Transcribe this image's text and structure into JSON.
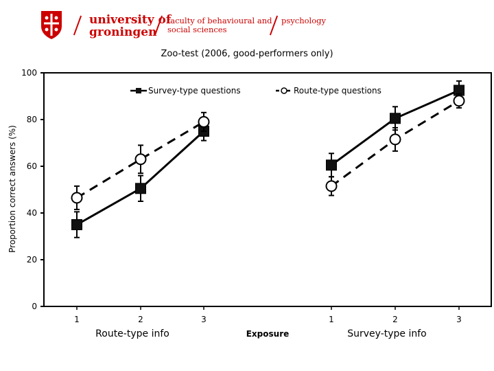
{
  "header": {
    "logo_line1": "university of",
    "logo_line2": "groningen",
    "faculty_line1": "faculty of behavioural and",
    "faculty_line2": "social sciences",
    "department": "psychology",
    "brand_color": "#cc0000"
  },
  "chart_data": {
    "type": "line",
    "title": "Zoo-test (2006, good-performers only)",
    "ylabel": "Proportion correct answers (%)",
    "xlabel": "Exposure",
    "ylim": [
      0,
      100
    ],
    "yticks": [
      0,
      20,
      40,
      60,
      80,
      100
    ],
    "groups": [
      {
        "label": "Route-type info",
        "categories": [
          "1",
          "2",
          "3"
        ]
      },
      {
        "label": "Survey-type info",
        "categories": [
          "1",
          "2",
          "3"
        ]
      }
    ],
    "series": [
      {
        "name": "Survey-type questions",
        "marker": "filled-square",
        "line": "solid",
        "groups": [
          {
            "values": [
              35,
              50.5,
              75
            ],
            "errors": [
              5.5,
              5.5,
              4
            ]
          },
          {
            "values": [
              60.5,
              80.5,
              92.5
            ],
            "errors": [
              5,
              5,
              4
            ]
          }
        ]
      },
      {
        "name": "Route-type questions",
        "marker": "open-circle",
        "line": "dashed",
        "groups": [
          {
            "values": [
              46.5,
              63,
              79
            ],
            "errors": [
              5,
              6,
              4
            ]
          },
          {
            "values": [
              51.5,
              71.5,
              88
            ],
            "errors": [
              4,
              5,
              3
            ]
          }
        ]
      }
    ],
    "legend_position": "top"
  }
}
